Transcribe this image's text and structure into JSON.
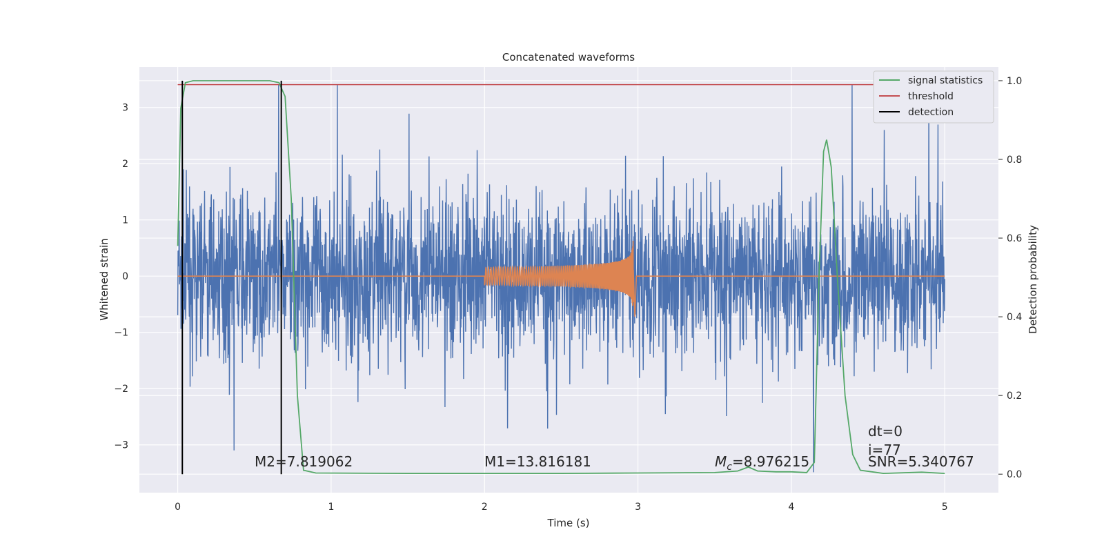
{
  "chart_data": {
    "type": "line",
    "title": "Concatenated waveforms",
    "xlabel": "Time (s)",
    "ylabel": "Whitened strain",
    "ylabel_right": "Detection probability",
    "xlim": [
      -0.25,
      5.35
    ],
    "ylim": [
      -3.85,
      3.72
    ],
    "ylim_right": [
      -0.047,
      1.035
    ],
    "xticks": [
      "0",
      "1",
      "2",
      "3",
      "4",
      "5"
    ],
    "yticks": [
      "−3",
      "−2",
      "−1",
      "0",
      "1",
      "2",
      "3"
    ],
    "yticks_right": [
      "0.0",
      "0.2",
      "0.4",
      "0.6",
      "0.8",
      "1.0"
    ],
    "grid": true,
    "legend_position": "top-right",
    "background": "#eaeaf2",
    "series": [
      {
        "color": "#4c72b0",
        "axis": "left",
        "kind": "noise",
        "x_range": [
          0,
          5
        ],
        "amplitude_range": [
          -3.5,
          3.4
        ]
      },
      {
        "color": "#dd8452",
        "axis": "left",
        "kind": "chirp",
        "x_range": [
          2.0,
          2.97
        ],
        "peak_amplitude": 0.85
      },
      {
        "name": "signal statistics",
        "color": "#55a868",
        "axis": "right",
        "points": [
          [
            0,
            0.58
          ],
          [
            0.02,
            0.93
          ],
          [
            0.05,
            0.995
          ],
          [
            0.1,
            1.0
          ],
          [
            0.6,
            1.0
          ],
          [
            0.66,
            0.995
          ],
          [
            0.7,
            0.96
          ],
          [
            0.74,
            0.7
          ],
          [
            0.78,
            0.2
          ],
          [
            0.82,
            0.01
          ],
          [
            0.9,
            0.003
          ],
          [
            1.5,
            0.002
          ],
          [
            2.5,
            0.002
          ],
          [
            3.0,
            0.003
          ],
          [
            3.5,
            0.004
          ],
          [
            3.65,
            0.008
          ],
          [
            3.72,
            0.018
          ],
          [
            3.78,
            0.008
          ],
          [
            3.9,
            0.006
          ],
          [
            4.0,
            0.006
          ],
          [
            4.1,
            0.004
          ],
          [
            4.15,
            0.03
          ],
          [
            4.18,
            0.5
          ],
          [
            4.21,
            0.82
          ],
          [
            4.23,
            0.85
          ],
          [
            4.26,
            0.78
          ],
          [
            4.3,
            0.5
          ],
          [
            4.35,
            0.2
          ],
          [
            4.4,
            0.05
          ],
          [
            4.45,
            0.01
          ],
          [
            4.6,
            0.002
          ],
          [
            4.85,
            0.005
          ],
          [
            5.0,
            0.002
          ]
        ]
      },
      {
        "name": "threshold",
        "color": "#c44e52",
        "axis": "right",
        "value": 0.99
      },
      {
        "name": "detection",
        "color": "#000000",
        "axis": "right",
        "x": [
          0.03,
          0.675
        ],
        "range": [
          0,
          1
        ]
      }
    ],
    "legend": [
      "signal statistics",
      "threshold",
      "detection"
    ],
    "annotations": [
      "M2=7.819062",
      "M1=13.816181",
      "M_c=8.976215",
      "dt=0",
      "i=77",
      "SNR=5.340767"
    ]
  }
}
